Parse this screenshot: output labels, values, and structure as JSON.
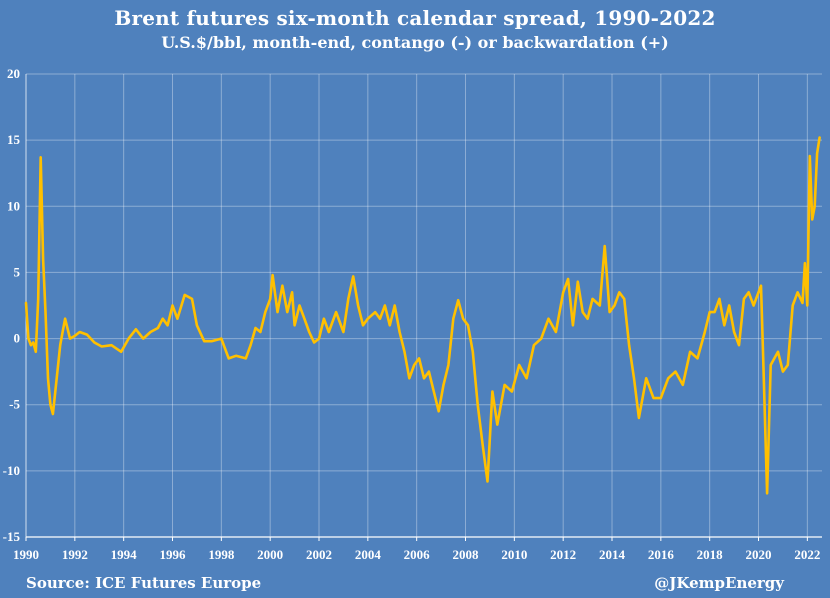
{
  "header": {
    "title": "Brent futures six-month calendar spread, 1990-2022",
    "subtitle": "U.S.$/bbl, month-end, contango (-) or backwardation (+)"
  },
  "footer": {
    "source": "Source: ICE Futures Europe",
    "credit": "@JKempEnergy"
  },
  "chart_data": {
    "type": "line",
    "title": "Brent futures six-month calendar spread, 1990-2022",
    "subtitle": "U.S.$/bbl, month-end, contango (-) or backwardation (+)",
    "xlabel": "",
    "ylabel": "",
    "xlim": [
      1990,
      2022.6
    ],
    "ylim": [
      -15,
      20
    ],
    "y_ticks": [
      -15,
      -10,
      -5,
      0,
      5,
      10,
      15,
      20
    ],
    "x_ticks": [
      1990,
      1992,
      1994,
      1996,
      1998,
      2000,
      2002,
      2004,
      2006,
      2008,
      2010,
      2012,
      2014,
      2016,
      2018,
      2020,
      2022
    ],
    "grid": true,
    "legend": "none",
    "line_color": "#ffc000",
    "background_color": "#4f81bd",
    "series": [
      {
        "x": [
          1990.0,
          1990.1,
          1990.2,
          1990.3,
          1990.4,
          1990.5,
          1990.6,
          1990.7,
          1990.8,
          1990.9,
          1991.0,
          1991.1,
          1991.2,
          1991.4,
          1991.5,
          1991.6,
          1991.8,
          1992.0,
          1992.2,
          1992.5,
          1992.8,
          1993.1,
          1993.5,
          1993.9,
          1994.2,
          1994.5,
          1994.8,
          1995.1,
          1995.4,
          1995.6,
          1995.8,
          1996.0,
          1996.2,
          1996.5,
          1996.8,
          1997.0,
          1997.3,
          1997.6,
          1998.0,
          1998.3,
          1998.6,
          1999.0,
          1999.2,
          1999.4,
          1999.6,
          1999.8,
          2000.0,
          2000.1,
          2000.3,
          2000.5,
          2000.7,
          2000.9,
          2001.0,
          2001.2,
          2001.4,
          2001.6,
          2001.8,
          2002.0,
          2002.2,
          2002.4,
          2002.7,
          2003.0,
          2003.2,
          2003.4,
          2003.6,
          2003.8,
          2004.0,
          2004.3,
          2004.5,
          2004.7,
          2004.9,
          2005.1,
          2005.3,
          2005.5,
          2005.7,
          2005.9,
          2006.1,
          2006.3,
          2006.5,
          2006.7,
          2006.9,
          2007.1,
          2007.3,
          2007.5,
          2007.7,
          2007.9,
          2008.1,
          2008.3,
          2008.5,
          2008.7,
          2008.9,
          2009.1,
          2009.3,
          2009.6,
          2009.9,
          2010.2,
          2010.5,
          2010.8,
          2011.1,
          2011.4,
          2011.7,
          2012.0,
          2012.2,
          2012.4,
          2012.6,
          2012.8,
          2013.0,
          2013.2,
          2013.5,
          2013.7,
          2013.9,
          2014.1,
          2014.3,
          2014.5,
          2014.7,
          2014.9,
          2015.1,
          2015.4,
          2015.7,
          2016.0,
          2016.3,
          2016.6,
          2016.9,
          2017.2,
          2017.5,
          2017.8,
          2018.0,
          2018.2,
          2018.4,
          2018.6,
          2018.8,
          2019.0,
          2019.2,
          2019.4,
          2019.6,
          2019.8,
          2020.0,
          2020.1,
          2020.2,
          2020.35,
          2020.5,
          2020.8,
          2021.0,
          2021.2,
          2021.4,
          2021.6,
          2021.8,
          2021.9,
          2022.0,
          2022.1,
          2022.2,
          2022.3,
          2022.4,
          2022.5
        ],
        "values": [
          2.7,
          0.0,
          -0.5,
          -0.3,
          -1.0,
          3.0,
          13.7,
          6.0,
          2.0,
          -3.0,
          -5.0,
          -5.7,
          -4.0,
          -0.5,
          0.5,
          1.5,
          0.0,
          0.2,
          0.5,
          0.3,
          -0.3,
          -0.6,
          -0.5,
          -1.0,
          0.0,
          0.7,
          0.0,
          0.5,
          0.8,
          1.5,
          1.0,
          2.5,
          1.5,
          3.3,
          3.0,
          1.0,
          -0.2,
          -0.2,
          0.0,
          -1.5,
          -1.3,
          -1.5,
          -0.5,
          0.8,
          0.5,
          2.0,
          3.0,
          4.8,
          2.0,
          4.0,
          2.0,
          3.5,
          1.0,
          2.5,
          1.5,
          0.5,
          -0.3,
          0.0,
          1.5,
          0.5,
          2.0,
          0.5,
          3.0,
          4.7,
          2.5,
          1.0,
          1.5,
          2.0,
          1.5,
          2.5,
          1.0,
          2.5,
          0.5,
          -1.0,
          -3.0,
          -2.0,
          -1.5,
          -3.0,
          -2.5,
          -4.0,
          -5.5,
          -3.5,
          -2.0,
          1.5,
          2.9,
          1.5,
          1.0,
          -1.0,
          -5.0,
          -8.0,
          -10.8,
          -4.0,
          -6.5,
          -3.5,
          -4.0,
          -2.0,
          -3.0,
          -0.5,
          0.0,
          1.5,
          0.5,
          3.5,
          4.5,
          1.0,
          4.3,
          2.0,
          1.5,
          3.0,
          2.5,
          7.0,
          2.0,
          2.5,
          3.5,
          3.0,
          -0.5,
          -3.0,
          -6.0,
          -3.0,
          -4.5,
          -4.5,
          -3.0,
          -2.5,
          -3.5,
          -1.0,
          -1.5,
          0.5,
          2.0,
          2.0,
          3.0,
          1.0,
          2.5,
          0.5,
          -0.5,
          3.0,
          3.5,
          2.5,
          3.5,
          4.0,
          -2.0,
          -11.7,
          -2.0,
          -1.0,
          -2.5,
          -2.0,
          2.5,
          3.5,
          2.7,
          5.7,
          2.5,
          13.8,
          9.0,
          10.0,
          14.0,
          15.2
        ]
      }
    ]
  }
}
